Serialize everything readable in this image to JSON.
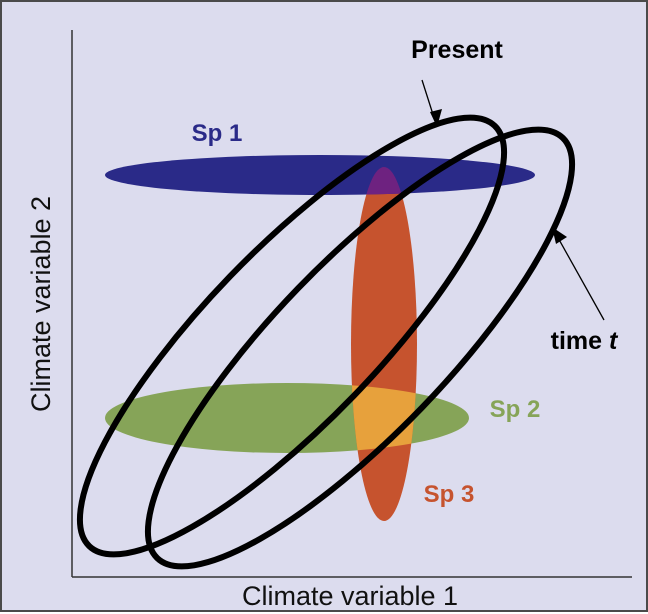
{
  "axes": {
    "x_label": "Climate variable 1",
    "y_label": "Climate variable 2"
  },
  "climate_envelopes": {
    "present_label": "Present",
    "time_prefix": "time ",
    "time_variable": "t",
    "stroke_color": "#000000"
  },
  "species": [
    {
      "label": "Sp 1",
      "color": "#2a2a88"
    },
    {
      "label": "Sp 2",
      "color": "#86a458"
    },
    {
      "label": "Sp 3",
      "color": "#c6532e"
    }
  ],
  "colors": {
    "background": "#dcdcee",
    "overlap_sp1_sp3": "#6e2280",
    "overlap_sp2_sp3": "#e7a13c"
  }
}
